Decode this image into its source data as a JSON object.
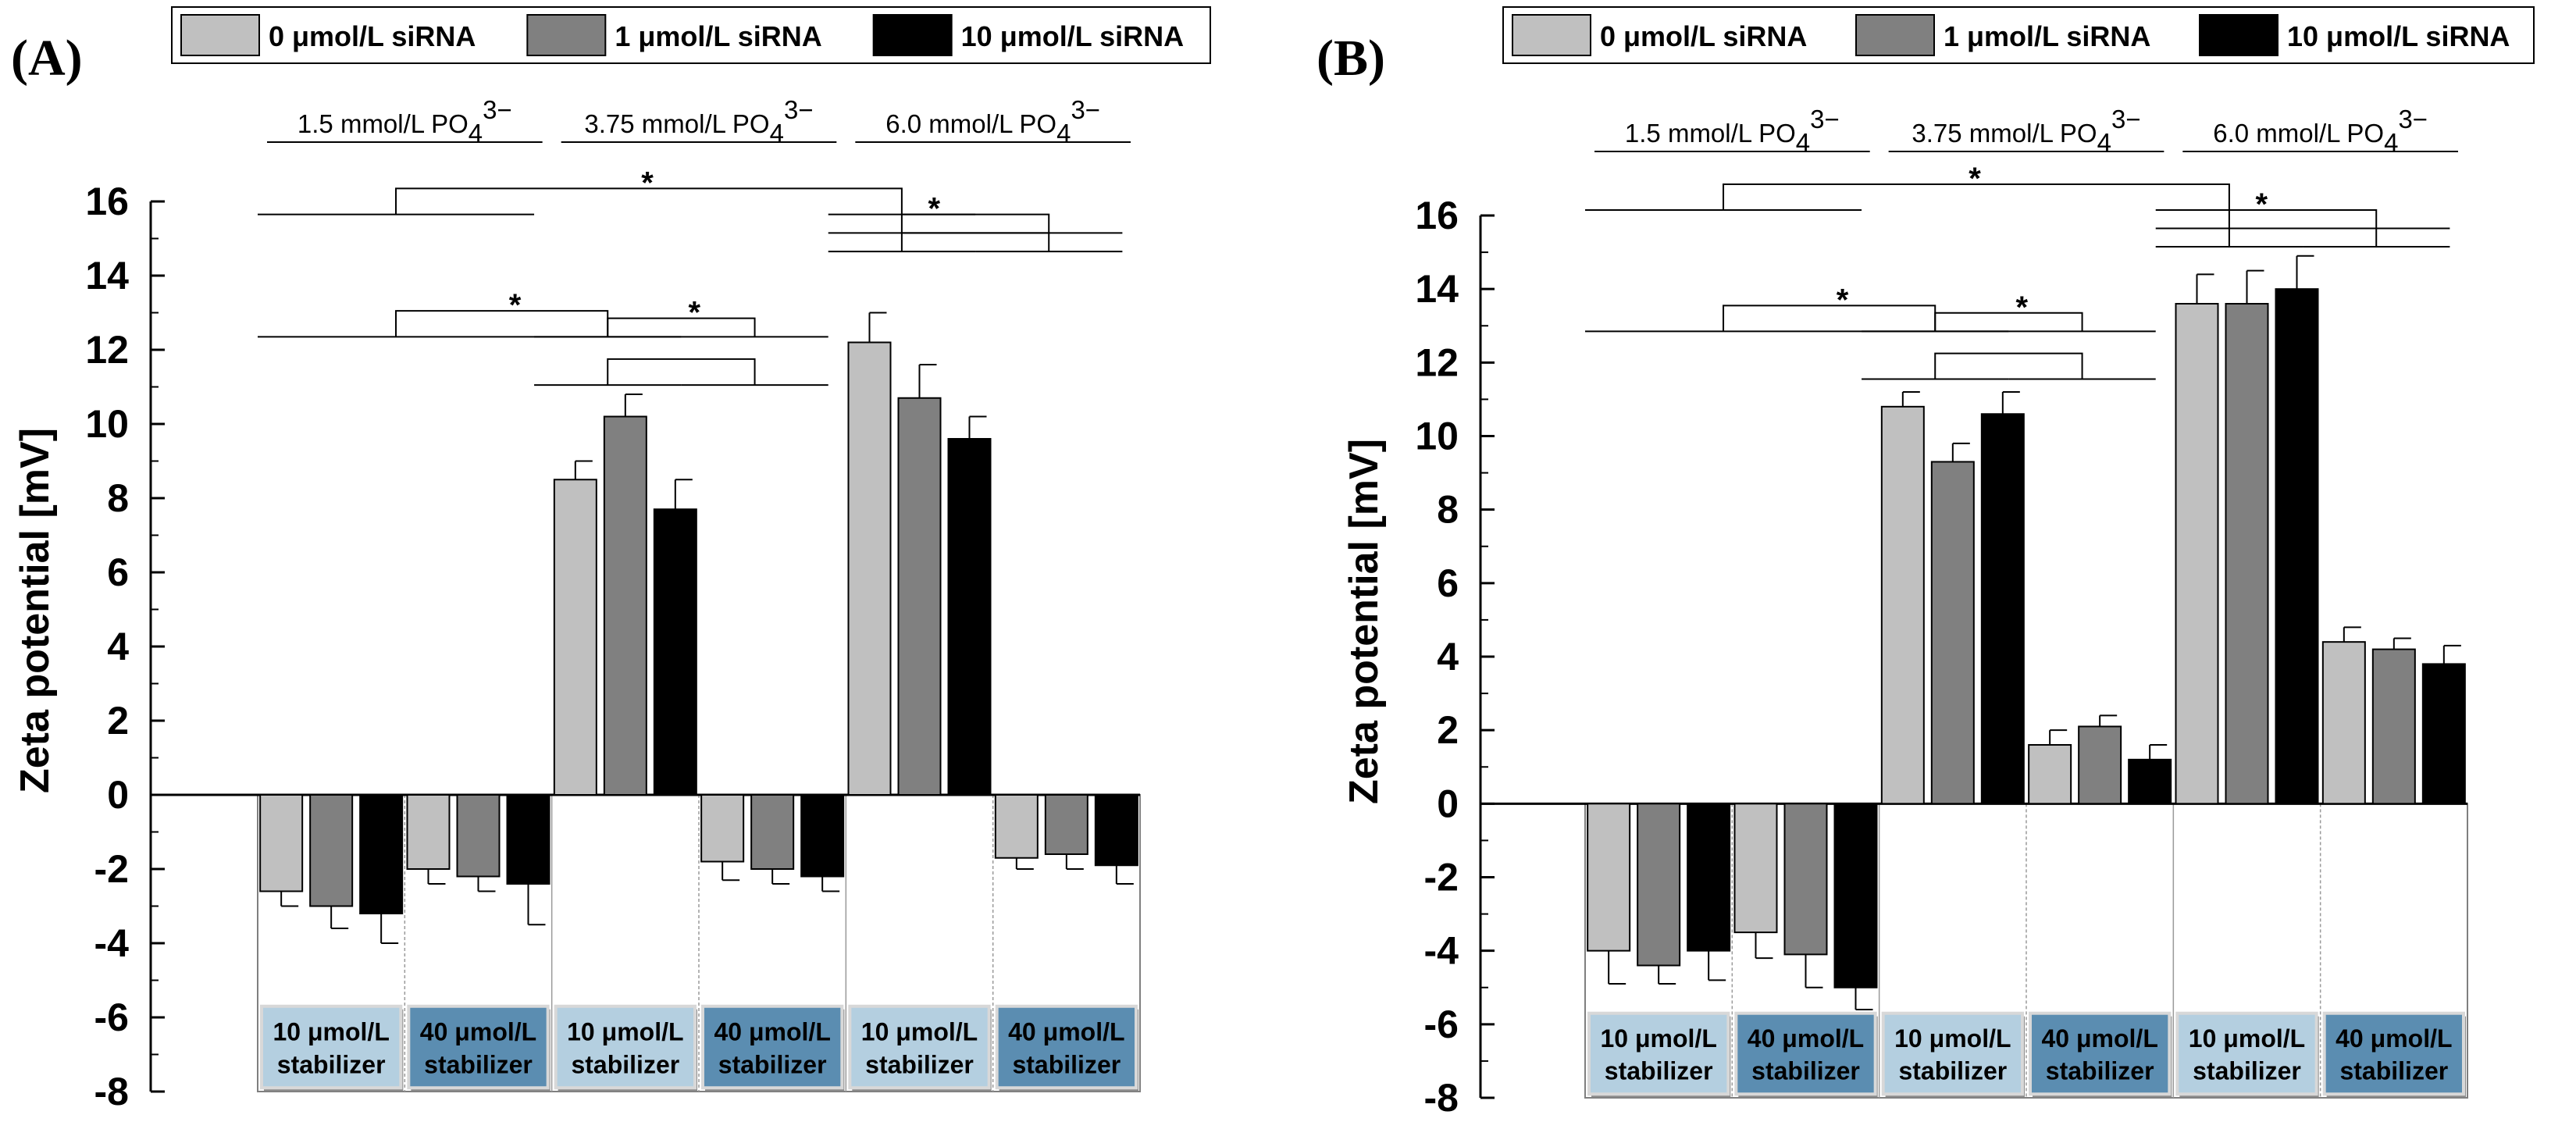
{
  "legend": {
    "items": [
      {
        "label": "0 μmol/L siRNA",
        "color": "#c0c0c0"
      },
      {
        "label": "1 μmol/L siRNA",
        "color": "#808080"
      },
      {
        "label": "10 μmol/L siRNA",
        "color": "#000000"
      }
    ]
  },
  "concentration_labels": [
    {
      "main": "1.5 mmol/L PO",
      "sub": "4",
      "sup": "3−"
    },
    {
      "main": "3.75 mmol/L PO",
      "sub": "4",
      "sup": "3−"
    },
    {
      "main": "6.0 mmol/L PO",
      "sub": "4",
      "sup": "3−"
    }
  ],
  "stabilizer_labels": [
    {
      "line1": "10 μmol/L",
      "line2": "stabilizer",
      "fill": "#b4cfe0",
      "text_color": "#000000"
    },
    {
      "line1": "40 μmol/L",
      "line2": "stabilizer",
      "fill": "#5b8db1",
      "text_color": "#000000"
    }
  ],
  "significance_marker": "*",
  "colors": {
    "series0": "#c0c0c0",
    "series1": "#808080",
    "series2": "#000000",
    "stab_light": "#b4cfe0",
    "stab_dark": "#5b8db1"
  },
  "chart_data": [
    {
      "panel": "(A)",
      "type": "bar",
      "ylabel": "Zeta potential [mV]",
      "ylim": [
        -8,
        16
      ],
      "yticks": [
        16,
        14,
        12,
        10,
        8,
        6,
        4,
        2,
        0,
        -2,
        -4,
        -6,
        -8
      ],
      "groups": [
        "1.5 mmol/L PO4 3− / 10 μmol/L stabilizer",
        "1.5 mmol/L PO4 3− / 40 μmol/L stabilizer",
        "3.75 mmol/L PO4 3− / 10 μmol/L stabilizer",
        "3.75 mmol/L PO4 3− / 40 μmol/L stabilizer",
        "6.0 mmol/L PO4 3− / 10 μmol/L stabilizer",
        "6.0 mmol/L PO4 3− / 40 μmol/L stabilizer"
      ],
      "series": [
        {
          "name": "0 μmol/L siRNA",
          "values": [
            -2.6,
            -2.0,
            8.5,
            -1.8,
            12.2,
            -1.7
          ],
          "errors": [
            0.4,
            0.4,
            0.5,
            0.5,
            0.8,
            0.3
          ]
        },
        {
          "name": "1 μmol/L siRNA",
          "values": [
            -3.0,
            -2.2,
            10.2,
            -2.0,
            10.7,
            -1.6
          ],
          "errors": [
            0.6,
            0.4,
            0.6,
            0.4,
            0.9,
            0.4
          ]
        },
        {
          "name": "10 μmol/L siRNA",
          "values": [
            -3.2,
            -2.4,
            7.7,
            -2.2,
            9.6,
            -1.9
          ],
          "errors": [
            0.8,
            1.1,
            0.8,
            0.4,
            0.6,
            0.5
          ]
        }
      ],
      "significance_brackets": [
        {
          "level_y": 15.65,
          "top_y": 16.35,
          "left": [
            0.0,
            1.88
          ],
          "right": [
            3.88,
            4.88
          ],
          "star_x": 2.65
        },
        {
          "level_y": 15.15,
          "top_y": 15.65,
          "left": [
            3.88,
            4.88
          ],
          "right": [
            4.88,
            5.88
          ],
          "star_x": 4.6
        },
        {
          "level_y": 14.65,
          "top_y": 15.15,
          "left": [
            3.88,
            4.88
          ],
          "right": [
            4.88,
            5.88
          ],
          "star_x": null
        },
        {
          "level_y": 12.35,
          "top_y": 13.05,
          "left": [
            0.0,
            1.88
          ],
          "right": [
            1.88,
            2.88
          ],
          "star_x": 1.75
        },
        {
          "level_y": 12.35,
          "top_y": 12.85,
          "left": [
            1.88,
            2.88
          ],
          "right": [
            2.88,
            3.88
          ],
          "star_x": 2.97
        },
        {
          "level_y": 11.05,
          "top_y": 11.75,
          "left": [
            1.88,
            2.88
          ],
          "right": [
            2.88,
            3.88
          ],
          "star_x": null
        }
      ]
    },
    {
      "panel": "(B)",
      "type": "bar",
      "ylabel": "Zeta potential [mV]",
      "ylim": [
        -8,
        16
      ],
      "yticks": [
        16,
        14,
        12,
        10,
        8,
        6,
        4,
        2,
        0,
        -2,
        -4,
        -6,
        -8
      ],
      "groups": [
        "1.5 mmol/L PO4 3− / 10 μmol/L stabilizer",
        "1.5 mmol/L PO4 3− / 40 μmol/L stabilizer",
        "3.75 mmol/L PO4 3− / 10 μmol/L stabilizer",
        "3.75 mmol/L PO4 3− / 40 μmol/L stabilizer",
        "6.0 mmol/L PO4 3− / 10 μmol/L stabilizer",
        "6.0 mmol/L PO4 3− / 40 μmol/L stabilizer"
      ],
      "series": [
        {
          "name": "0 μmol/L siRNA",
          "values": [
            -4.0,
            -3.5,
            10.8,
            1.6,
            13.6,
            4.4
          ],
          "errors": [
            0.9,
            0.7,
            0.4,
            0.4,
            0.8,
            0.4
          ]
        },
        {
          "name": "1 μmol/L siRNA",
          "values": [
            -4.4,
            -4.1,
            9.3,
            2.1,
            13.6,
            4.2
          ],
          "errors": [
            0.5,
            0.9,
            0.5,
            0.3,
            0.9,
            0.3
          ]
        },
        {
          "name": "10 μmol/L siRNA",
          "values": [
            -4.0,
            -5.0,
            10.6,
            1.2,
            14.0,
            3.8
          ],
          "errors": [
            0.8,
            0.6,
            0.6,
            0.4,
            0.9,
            0.5
          ]
        }
      ],
      "significance_brackets": [
        {
          "level_y": 16.15,
          "top_y": 16.85,
          "left": [
            0.0,
            1.88
          ],
          "right": [
            3.88,
            4.88
          ],
          "star_x": 2.65
        },
        {
          "level_y": 15.65,
          "top_y": 16.15,
          "left": [
            3.88,
            4.88
          ],
          "right": [
            4.88,
            5.88
          ],
          "star_x": 4.6
        },
        {
          "level_y": 15.15,
          "top_y": 15.65,
          "left": [
            3.88,
            4.88
          ],
          "right": [
            4.88,
            5.88
          ],
          "star_x": null
        },
        {
          "level_y": 12.85,
          "top_y": 13.55,
          "left": [
            0.0,
            1.88
          ],
          "right": [
            1.88,
            2.88
          ],
          "star_x": 1.75
        },
        {
          "level_y": 12.85,
          "top_y": 13.35,
          "left": [
            1.88,
            2.88
          ],
          "right": [
            2.88,
            3.88
          ],
          "star_x": 2.97
        },
        {
          "level_y": 11.55,
          "top_y": 12.25,
          "left": [
            1.88,
            2.88
          ],
          "right": [
            2.88,
            3.88
          ],
          "star_x": null
        }
      ]
    }
  ]
}
